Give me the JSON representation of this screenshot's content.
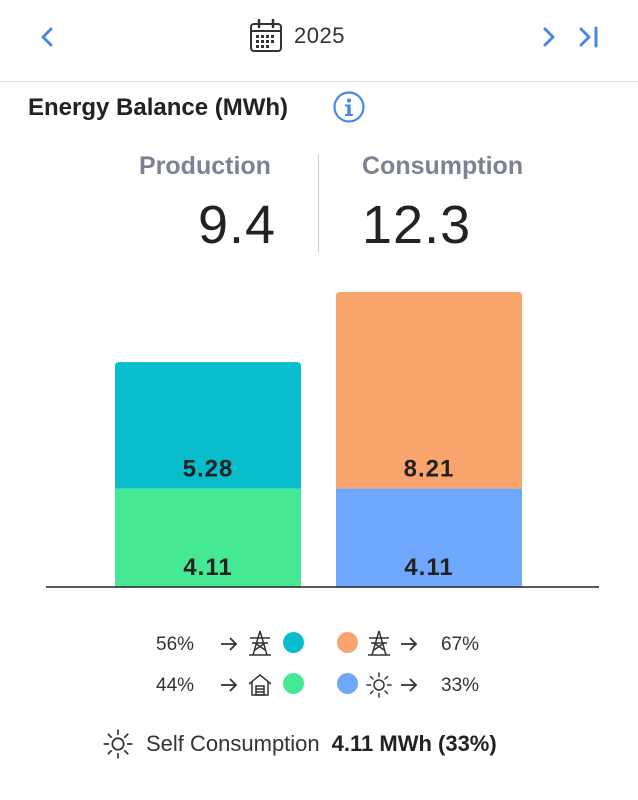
{
  "header": {
    "year": "2025",
    "prev_icon": "chevron-left-icon",
    "next_icon": "chevron-right-icon",
    "last_icon": "skip-to-end-icon",
    "calendar_icon": "calendar-icon",
    "accent_color": "#4a86e8"
  },
  "balance": {
    "title": "Energy Balance (MWh)",
    "info_icon": "info-icon",
    "production_label": "Production",
    "production_value": "9.4",
    "consumption_label": "Consumption",
    "consumption_value": "12.3"
  },
  "chart_data": {
    "type": "bar",
    "stacked": true,
    "categories": [
      "Production",
      "Consumption"
    ],
    "series": [
      {
        "values": [
          4.11,
          4.11
        ],
        "labels": [
          "4.11",
          "4.11"
        ],
        "colors": [
          "#45e893",
          "#6fa8fa"
        ]
      },
      {
        "values": [
          5.28,
          8.21
        ],
        "labels": [
          "5.28",
          "8.21"
        ],
        "colors": [
          "#08bccb",
          "#f9a46d"
        ]
      }
    ],
    "title": "",
    "xlabel": "",
    "ylabel": "",
    "ylim": [
      0,
      12.32
    ],
    "grid": false
  },
  "legend": {
    "rows": [
      {
        "left_pct": "56%",
        "left_icon": "transmission-tower-icon",
        "left_color": "#08bccb",
        "right_color": "#f9a46d",
        "right_icon": "transmission-tower-icon",
        "right_pct": "67%"
      },
      {
        "left_pct": "44%",
        "left_icon": "house-icon",
        "left_color": "#45e893",
        "right_color": "#6fa8fa",
        "right_icon": "sun-icon",
        "right_pct": "33%"
      }
    ]
  },
  "self_consumption": {
    "icon": "sun-icon",
    "label": "Self Consumption",
    "value": "4.11 MWh (33%)"
  }
}
